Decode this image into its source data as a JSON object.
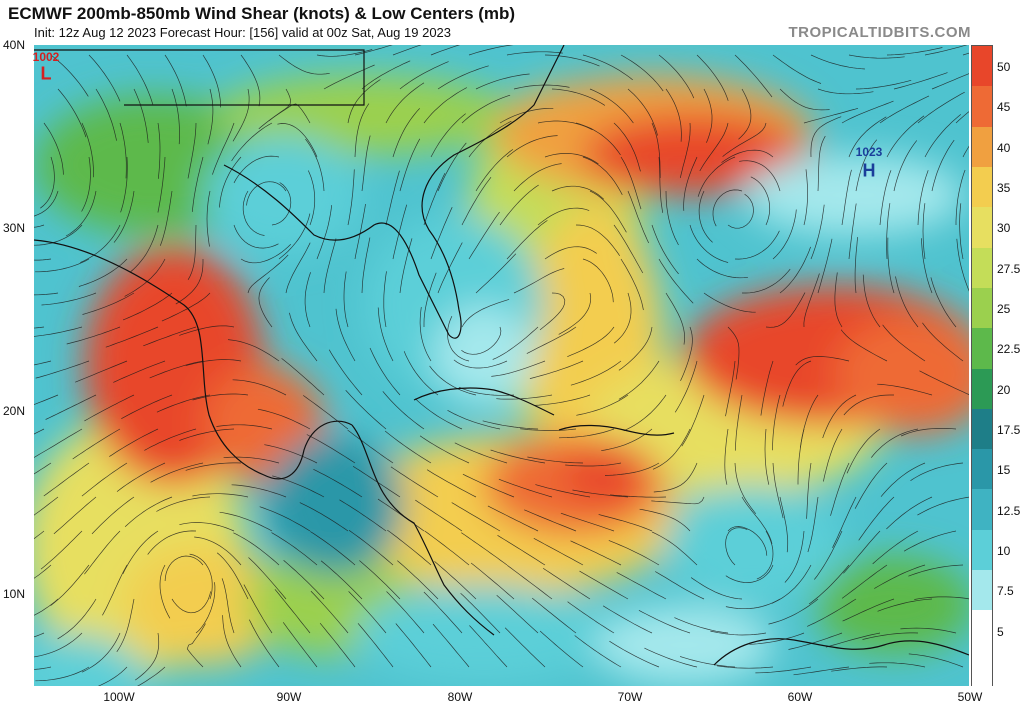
{
  "header": {
    "title": "ECMWF 200mb-850mb Wind Shear (knots) & Low Centers (mb)",
    "subtitle": "Init: 12z Aug 12 2023   Forecast Hour: [156]   valid at 00z Sat, Aug 19 2023",
    "brand": "TROPICALTIDBITS.COM"
  },
  "axes": {
    "lat_labels": [
      "40N",
      "30N",
      "20N",
      "10N"
    ],
    "lon_labels": [
      "100W",
      "90W",
      "80W",
      "70W",
      "60W",
      "50W"
    ]
  },
  "colorbar": {
    "labels": [
      "50",
      "45",
      "40",
      "35",
      "30",
      "27.5",
      "25",
      "22.5",
      "20",
      "17.5",
      "15",
      "12.5",
      "10",
      "7.5",
      "5"
    ],
    "colors": [
      "#e8462a",
      "#ee6a35",
      "#f0a040",
      "#f3cd4f",
      "#e7df60",
      "#c4dd58",
      "#9bd04e",
      "#5db94b",
      "#2c9a55",
      "#1e7e88",
      "#2a97a8",
      "#3fb3c2",
      "#5ccfd8",
      "#a4e8ec",
      "#ffffff"
    ]
  },
  "pressure_centers": [
    {
      "letter": "L",
      "value": "1002",
      "color": "#d42020"
    },
    {
      "letter": "H",
      "value": "1023",
      "color": "#1a3e9a"
    }
  ]
}
